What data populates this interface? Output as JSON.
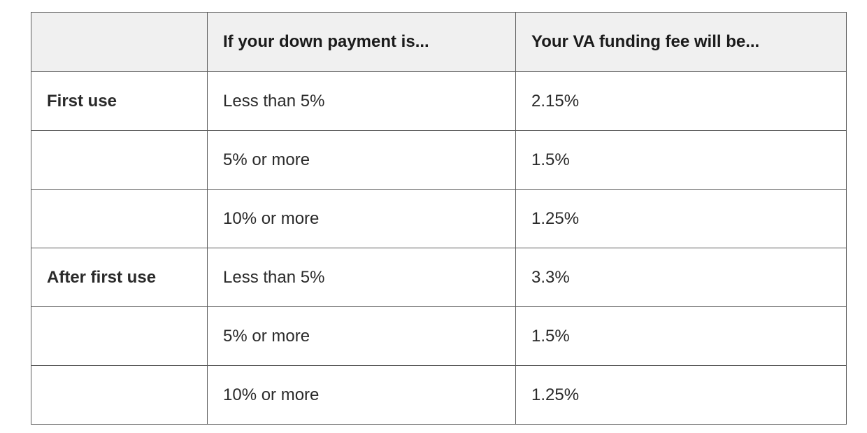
{
  "table": {
    "headers": [
      "",
      "If your down payment is...",
      "Your VA funding fee will be..."
    ],
    "rows": [
      {
        "use": "First use",
        "down_payment": "Less than 5%",
        "fee": "2.15%"
      },
      {
        "use": "",
        "down_payment": "5% or more",
        "fee": "1.5%"
      },
      {
        "use": "",
        "down_payment": "10% or more",
        "fee": "1.25%"
      },
      {
        "use": "After first use",
        "down_payment": "Less than 5%",
        "fee": "3.3%"
      },
      {
        "use": "",
        "down_payment": "5% or more",
        "fee": "1.5%"
      },
      {
        "use": "",
        "down_payment": "10% or more",
        "fee": "1.25%"
      }
    ]
  }
}
